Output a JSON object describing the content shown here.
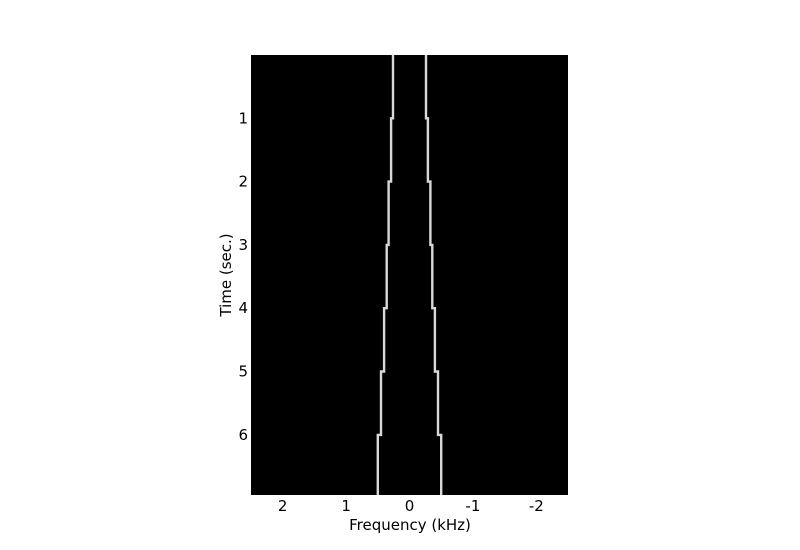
{
  "chart_data": {
    "type": "line",
    "title": "",
    "xlabel": "Frequency (kHz)",
    "ylabel": "Time (sec.)",
    "xlim": [
      2.5,
      -2.5
    ],
    "ylim": [
      0,
      6.95
    ],
    "y_inverted": true,
    "x_inverted": true,
    "xticks": [
      2,
      1,
      0,
      -1,
      -2
    ],
    "xtick_labels": [
      "2",
      "1",
      "0",
      "-1",
      "-2"
    ],
    "yticks": [
      1,
      2,
      3,
      4,
      5,
      6
    ],
    "ytick_labels": [
      "1",
      "2",
      "3",
      "4",
      "5",
      "6"
    ],
    "grid": false,
    "background_color": "#000000",
    "line_color": "#d8d8d8",
    "series": [
      {
        "time_segments": [
          [
            0,
            1
          ],
          [
            1,
            2
          ],
          [
            2,
            3
          ],
          [
            3,
            4
          ],
          [
            4,
            5
          ],
          [
            5,
            6
          ],
          [
            6,
            6.95
          ]
        ],
        "frequency_khz": [
          0.26,
          0.29,
          0.33,
          0.36,
          0.4,
          0.45,
          0.5
        ]
      },
      {
        "time_segments": [
          [
            0,
            1
          ],
          [
            1,
            2
          ],
          [
            2,
            3
          ],
          [
            3,
            4
          ],
          [
            4,
            5
          ],
          [
            5,
            6
          ],
          [
            6,
            6.95
          ]
        ],
        "frequency_khz": [
          -0.26,
          -0.29,
          -0.33,
          -0.36,
          -0.4,
          -0.45,
          -0.5
        ]
      }
    ]
  }
}
